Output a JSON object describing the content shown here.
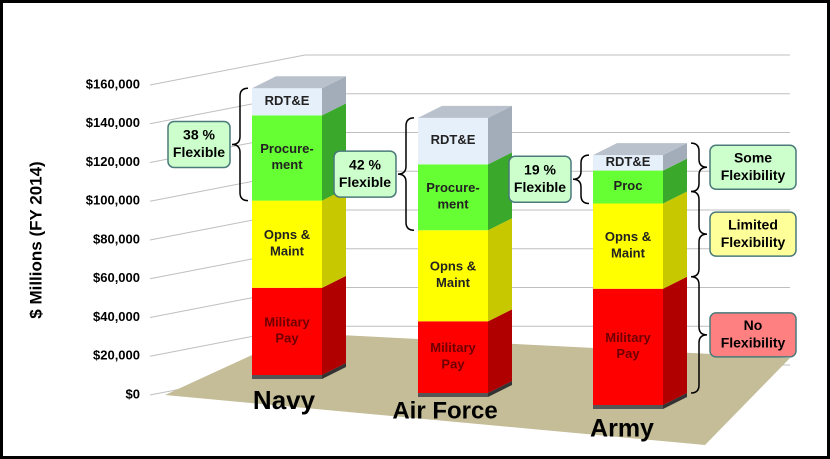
{
  "chart_data": {
    "type": "bar3d",
    "y_label": "$ Millions (FY 2014)",
    "categories": [
      "Navy",
      "Air Force",
      "Army"
    ],
    "ylim": [
      0,
      160000
    ],
    "yticks": [
      {
        "value": 0,
        "label": "$0"
      },
      {
        "value": 20000,
        "label": "$20,000"
      },
      {
        "value": 40000,
        "label": "$40,000"
      },
      {
        "value": 60000,
        "label": "$60,000"
      },
      {
        "value": 80000,
        "label": "$80,000"
      },
      {
        "value": 100000,
        "label": "$100,000"
      },
      {
        "value": 120000,
        "label": "$120,000"
      },
      {
        "value": 140000,
        "label": "$140,000"
      },
      {
        "value": 160000,
        "label": "$160,000"
      }
    ],
    "grid": true,
    "series": [
      {
        "color": "#ff0000",
        "side_color": "#b00000",
        "text_color": "#6e0000",
        "values": [
          45000,
          37000,
          60000
        ],
        "labels": [
          [
            "Military",
            "Pay"
          ],
          [
            "Military",
            "Pay"
          ],
          [
            "Military",
            "Pay"
          ]
        ]
      },
      {
        "color": "#ffff00",
        "side_color": "#c8c800",
        "text_color": "#222222",
        "values": [
          45000,
          47000,
          44000
        ],
        "labels": [
          [
            "Opns &",
            "Maint"
          ],
          [
            "Opns &",
            "Maint"
          ],
          [
            "Opns &",
            "Maint"
          ]
        ]
      },
      {
        "color": "#66ff33",
        "side_color": "#3aa82a",
        "text_color": "#222222",
        "values": [
          44000,
          34000,
          17000
        ],
        "labels": [
          [
            "Procure-",
            "ment"
          ],
          [
            "Procure-",
            "ment"
          ],
          [
            "Proc"
          ]
        ]
      },
      {
        "color": "#e6f0fb",
        "side_color": "#a3adba",
        "text_color": "#222222",
        "values": [
          14000,
          24000,
          8000
        ],
        "labels": [
          [
            "RDT&E"
          ],
          [
            "RDT&E"
          ],
          [
            "RDT&E"
          ]
        ]
      }
    ],
    "flex_notes": [
      [
        "38 %",
        "Flexible"
      ],
      [
        "42 %",
        "Flexible"
      ],
      [
        "19 %",
        "Flexible"
      ]
    ],
    "flex_color": "#ccffcc",
    "tiers": [
      {
        "lines": [
          "Some",
          "Flexibility"
        ],
        "color": "#ccffcc"
      },
      {
        "lines": [
          "Limited",
          "Flexibility"
        ],
        "color": "#ffff99"
      },
      {
        "lines": [
          "No",
          "Flexibility"
        ],
        "color": "#ff8080"
      }
    ]
  }
}
